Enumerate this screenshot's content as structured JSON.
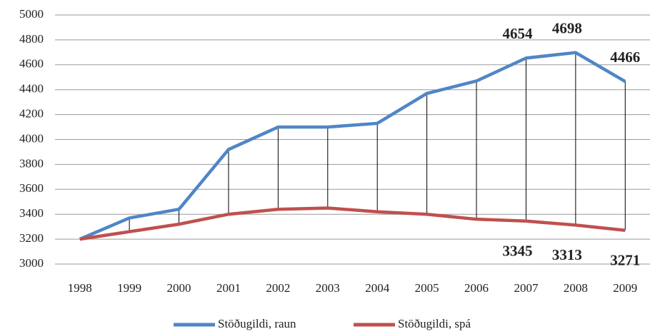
{
  "chart_data": {
    "type": "line",
    "categories": [
      "1998",
      "1999",
      "2000",
      "2001",
      "2002",
      "2003",
      "2004",
      "2005",
      "2006",
      "2007",
      "2008",
      "2009"
    ],
    "series": [
      {
        "name": "Stöðugildi, raun",
        "color": "#4f86c6",
        "values": [
          3200,
          3370,
          3440,
          3920,
          4100,
          4100,
          4130,
          4370,
          4470,
          4654,
          4698,
          4466
        ],
        "value_labels": [
          null,
          null,
          null,
          null,
          null,
          null,
          null,
          null,
          null,
          "4654",
          "4698",
          "4466"
        ]
      },
      {
        "name": "Stöðugildi, spá",
        "color": "#c0504d",
        "values": [
          3200,
          3260,
          3320,
          3400,
          3440,
          3450,
          3420,
          3400,
          3360,
          3345,
          3313,
          3271
        ],
        "value_labels": [
          null,
          null,
          null,
          null,
          null,
          null,
          null,
          null,
          null,
          "3345",
          "3313",
          "3271"
        ]
      }
    ],
    "ylim": [
      3000,
      5000
    ],
    "yticks": [
      3000,
      3200,
      3400,
      3600,
      3800,
      4000,
      4200,
      4400,
      4600,
      4800,
      5000
    ],
    "grid": true,
    "drop_lines": true,
    "legend": "bottom"
  }
}
